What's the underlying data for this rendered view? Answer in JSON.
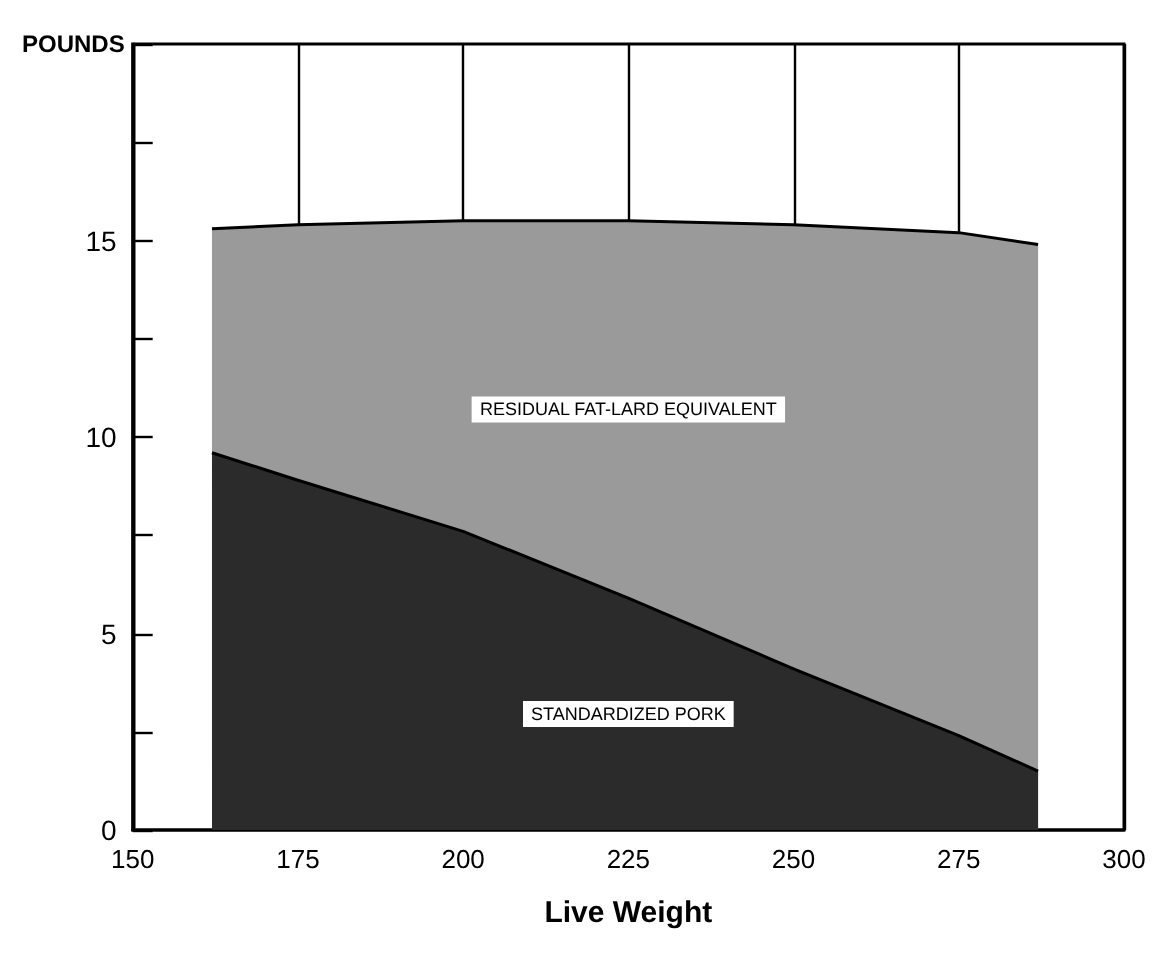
{
  "chart_data": {
    "type": "area",
    "stacked": true,
    "xlabel": "Live Weight",
    "ylabel": "POUNDS",
    "x": [
      162,
      175,
      200,
      225,
      250,
      275,
      287
    ],
    "series": [
      {
        "name": "STANDARDIZED PORK",
        "color": "#2b2b2b",
        "values": [
          9.6,
          8.9,
          7.6,
          5.9,
          4.1,
          2.4,
          1.5
        ]
      },
      {
        "name": "RESIDUAL FAT-LARD EQUIVALENT",
        "color": "#9a9a9a",
        "values": [
          5.7,
          6.5,
          7.9,
          9.6,
          11.3,
          12.8,
          13.4
        ]
      }
    ],
    "xlim": [
      150,
      300
    ],
    "xticks": [
      150,
      175,
      200,
      225,
      250,
      275,
      300
    ],
    "ylim": [
      0,
      20
    ],
    "yticks": [
      0,
      {
        "value": 2.5,
        "label": null
      },
      5,
      {
        "value": 7.5,
        "label": null
      },
      10,
      {
        "value": 12.5,
        "label": null
      },
      15,
      {
        "value": 17.5,
        "label": null
      },
      {
        "value": 20,
        "label": null
      }
    ],
    "grid": "x",
    "legend": false
  }
}
